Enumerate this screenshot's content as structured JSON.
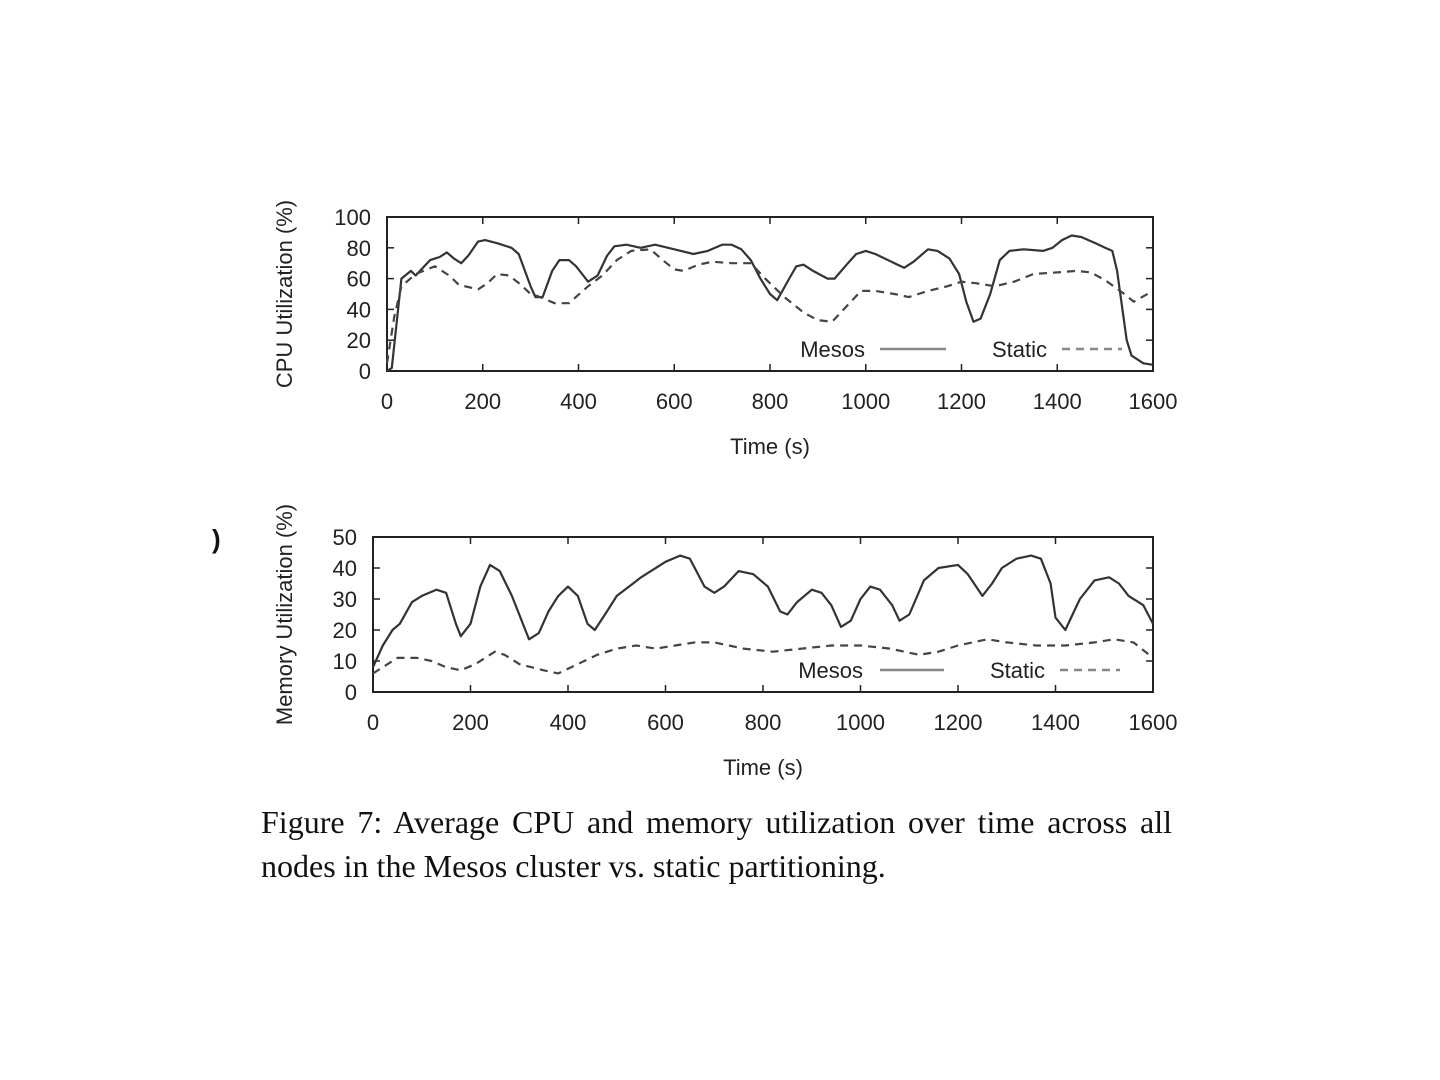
{
  "stray_mark": ")",
  "caption": "Figure 7:  Average CPU and memory utilization over time across all nodes in the Mesos cluster vs. static partitioning.",
  "chart_data": [
    {
      "type": "line",
      "xlabel": "Time (s)",
      "ylabel": "CPU Utilization (%)",
      "xlim": [
        0,
        1600
      ],
      "ylim": [
        0,
        100
      ],
      "xticks": [
        0,
        200,
        400,
        600,
        800,
        1000,
        1200,
        1400,
        1600
      ],
      "yticks": [
        0,
        20,
        40,
        60,
        80,
        100
      ],
      "legend_position": "bottom-right",
      "grid": false,
      "series": [
        {
          "name": "Mesos",
          "style": "solid",
          "color": "#333333",
          "points": [
            [
              0,
              0
            ],
            [
              10,
              2
            ],
            [
              30,
              60
            ],
            [
              50,
              65
            ],
            [
              60,
              62
            ],
            [
              75,
              67
            ],
            [
              90,
              72
            ],
            [
              110,
              74
            ],
            [
              125,
              77
            ],
            [
              140,
              73
            ],
            [
              155,
              70
            ],
            [
              170,
              75
            ],
            [
              190,
              84
            ],
            [
              205,
              85
            ],
            [
              230,
              83
            ],
            [
              260,
              80
            ],
            [
              275,
              76
            ],
            [
              300,
              55
            ],
            [
              310,
              48
            ],
            [
              325,
              48
            ],
            [
              345,
              65
            ],
            [
              360,
              72
            ],
            [
              380,
              72
            ],
            [
              395,
              68
            ],
            [
              410,
              62
            ],
            [
              420,
              58
            ],
            [
              440,
              62
            ],
            [
              460,
              75
            ],
            [
              475,
              81
            ],
            [
              500,
              82
            ],
            [
              530,
              80
            ],
            [
              560,
              82
            ],
            [
              600,
              79
            ],
            [
              640,
              76
            ],
            [
              670,
              78
            ],
            [
              700,
              82
            ],
            [
              720,
              82
            ],
            [
              740,
              79
            ],
            [
              760,
              72
            ],
            [
              780,
              60
            ],
            [
              800,
              50
            ],
            [
              815,
              46
            ],
            [
              840,
              60
            ],
            [
              855,
              68
            ],
            [
              870,
              69
            ],
            [
              890,
              65
            ],
            [
              920,
              60
            ],
            [
              935,
              60
            ],
            [
              960,
              69
            ],
            [
              980,
              76
            ],
            [
              1000,
              78
            ],
            [
              1020,
              76
            ],
            [
              1060,
              70
            ],
            [
              1080,
              67
            ],
            [
              1100,
              71
            ],
            [
              1130,
              79
            ],
            [
              1150,
              78
            ],
            [
              1175,
              73
            ],
            [
              1195,
              63
            ],
            [
              1210,
              45
            ],
            [
              1225,
              32
            ],
            [
              1240,
              34
            ],
            [
              1260,
              50
            ],
            [
              1280,
              72
            ],
            [
              1300,
              78
            ],
            [
              1330,
              79
            ],
            [
              1370,
              78
            ],
            [
              1390,
              80
            ],
            [
              1410,
              85
            ],
            [
              1430,
              88
            ],
            [
              1450,
              87
            ],
            [
              1480,
              83
            ],
            [
              1500,
              80
            ],
            [
              1515,
              78
            ],
            [
              1525,
              65
            ],
            [
              1545,
              20
            ],
            [
              1555,
              10
            ],
            [
              1580,
              5
            ],
            [
              1600,
              4
            ]
          ]
        },
        {
          "name": "Static",
          "style": "dashed",
          "color": "#444444",
          "points": [
            [
              0,
              5
            ],
            [
              15,
              35
            ],
            [
              30,
              55
            ],
            [
              60,
              63
            ],
            [
              100,
              68
            ],
            [
              130,
              62
            ],
            [
              150,
              56
            ],
            [
              190,
              53
            ],
            [
              210,
              57
            ],
            [
              230,
              63
            ],
            [
              255,
              62
            ],
            [
              280,
              56
            ],
            [
              300,
              50
            ],
            [
              320,
              48
            ],
            [
              350,
              44
            ],
            [
              380,
              44
            ],
            [
              420,
              55
            ],
            [
              450,
              62
            ],
            [
              480,
              72
            ],
            [
              510,
              78
            ],
            [
              550,
              79
            ],
            [
              580,
              71
            ],
            [
              600,
              66
            ],
            [
              620,
              65
            ],
            [
              650,
              69
            ],
            [
              680,
              71
            ],
            [
              720,
              70
            ],
            [
              760,
              70
            ],
            [
              790,
              60
            ],
            [
              830,
              48
            ],
            [
              870,
              38
            ],
            [
              900,
              33
            ],
            [
              930,
              32
            ],
            [
              960,
              42
            ],
            [
              990,
              52
            ],
            [
              1020,
              52
            ],
            [
              1060,
              50
            ],
            [
              1090,
              48
            ],
            [
              1130,
              52
            ],
            [
              1170,
              55
            ],
            [
              1200,
              58
            ],
            [
              1230,
              57
            ],
            [
              1270,
              55
            ],
            [
              1310,
              58
            ],
            [
              1350,
              63
            ],
            [
              1400,
              64
            ],
            [
              1440,
              65
            ],
            [
              1470,
              64
            ],
            [
              1500,
              59
            ],
            [
              1540,
              50
            ],
            [
              1560,
              45
            ],
            [
              1600,
              52
            ]
          ]
        }
      ]
    },
    {
      "type": "line",
      "xlabel": "Time (s)",
      "ylabel": "Memory Utilization (%)",
      "xlim": [
        0,
        1600
      ],
      "ylim": [
        0,
        50
      ],
      "xticks": [
        0,
        200,
        400,
        600,
        800,
        1000,
        1200,
        1400,
        1600
      ],
      "yticks": [
        0,
        10,
        20,
        30,
        40,
        50
      ],
      "legend_position": "bottom-right",
      "grid": false,
      "series": [
        {
          "name": "Mesos",
          "style": "solid",
          "color": "#333333",
          "points": [
            [
              0,
              8
            ],
            [
              20,
              15
            ],
            [
              40,
              20
            ],
            [
              55,
              22
            ],
            [
              80,
              29
            ],
            [
              100,
              31
            ],
            [
              130,
              33
            ],
            [
              150,
              32
            ],
            [
              170,
              22
            ],
            [
              180,
              18
            ],
            [
              200,
              22
            ],
            [
              220,
              34
            ],
            [
              240,
              41
            ],
            [
              260,
              39
            ],
            [
              285,
              31
            ],
            [
              320,
              17
            ],
            [
              340,
              19
            ],
            [
              360,
              26
            ],
            [
              380,
              31
            ],
            [
              400,
              34
            ],
            [
              420,
              31
            ],
            [
              440,
              22
            ],
            [
              455,
              20
            ],
            [
              480,
              26
            ],
            [
              500,
              31
            ],
            [
              550,
              37
            ],
            [
              600,
              42
            ],
            [
              630,
              44
            ],
            [
              650,
              43
            ],
            [
              680,
              34
            ],
            [
              700,
              32
            ],
            [
              720,
              34
            ],
            [
              750,
              39
            ],
            [
              780,
              38
            ],
            [
              810,
              34
            ],
            [
              835,
              26
            ],
            [
              850,
              25
            ],
            [
              870,
              29
            ],
            [
              900,
              33
            ],
            [
              920,
              32
            ],
            [
              940,
              28
            ],
            [
              960,
              21
            ],
            [
              980,
              23
            ],
            [
              1000,
              30
            ],
            [
              1020,
              34
            ],
            [
              1040,
              33
            ],
            [
              1065,
              28
            ],
            [
              1080,
              23
            ],
            [
              1100,
              25
            ],
            [
              1130,
              36
            ],
            [
              1160,
              40
            ],
            [
              1200,
              41
            ],
            [
              1220,
              38
            ],
            [
              1250,
              31
            ],
            [
              1270,
              35
            ],
            [
              1290,
              40
            ],
            [
              1320,
              43
            ],
            [
              1350,
              44
            ],
            [
              1370,
              43
            ],
            [
              1390,
              35
            ],
            [
              1400,
              24
            ],
            [
              1420,
              20
            ],
            [
              1450,
              30
            ],
            [
              1480,
              36
            ],
            [
              1510,
              37
            ],
            [
              1530,
              35
            ],
            [
              1550,
              31
            ],
            [
              1580,
              28
            ],
            [
              1600,
              22
            ]
          ]
        },
        {
          "name": "Static",
          "style": "dashed",
          "color": "#444444",
          "points": [
            [
              0,
              6
            ],
            [
              20,
              8
            ],
            [
              50,
              11
            ],
            [
              90,
              11
            ],
            [
              120,
              10
            ],
            [
              150,
              8
            ],
            [
              180,
              7
            ],
            [
              210,
              9
            ],
            [
              250,
              13
            ],
            [
              270,
              12
            ],
            [
              300,
              9
            ],
            [
              350,
              7
            ],
            [
              380,
              6
            ],
            [
              420,
              9
            ],
            [
              460,
              12
            ],
            [
              500,
              14
            ],
            [
              540,
              15
            ],
            [
              580,
              14
            ],
            [
              620,
              15
            ],
            [
              660,
              16
            ],
            [
              700,
              16
            ],
            [
              760,
              14
            ],
            [
              820,
              13
            ],
            [
              880,
              14
            ],
            [
              940,
              15
            ],
            [
              1000,
              15
            ],
            [
              1060,
              14
            ],
            [
              1120,
              12
            ],
            [
              1160,
              13
            ],
            [
              1200,
              15
            ],
            [
              1260,
              17
            ],
            [
              1300,
              16
            ],
            [
              1360,
              15
            ],
            [
              1420,
              15
            ],
            [
              1480,
              16
            ],
            [
              1520,
              17
            ],
            [
              1560,
              16
            ],
            [
              1600,
              11
            ]
          ]
        }
      ]
    }
  ]
}
